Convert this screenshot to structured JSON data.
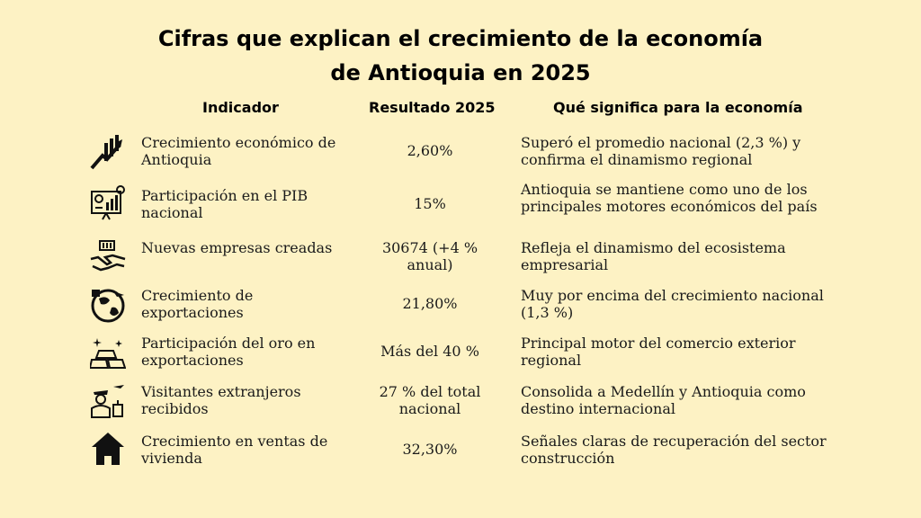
{
  "title_line1": "Cifras que explican el crecimiento de la economía",
  "title_line2": "de Antioquia en 2025",
  "headers": {
    "indicator": "Indicador",
    "result": "Resultado 2025",
    "meaning": "Qué significa para la economía"
  },
  "rows": [
    {
      "icon": "growth-chart-icon",
      "indicator": "Crecimiento económico de Antioquia",
      "result": "2,60%",
      "meaning": "Superó el promedio nacional (2,3 %) y confirma el dinamismo regional"
    },
    {
      "icon": "presentation-chart-icon",
      "indicator": "Participación en el PIB nacional",
      "result": "15%",
      "meaning": "Antioquia se mantiene como uno de los principales motores económicos del país"
    },
    {
      "icon": "handshake-icon",
      "indicator": "Nuevas empresas creadas",
      "result": "30674 (+4 % anual)",
      "meaning": "Refleja el dinamismo del ecosistema empresarial"
    },
    {
      "icon": "global-export-icon",
      "indicator": "Crecimiento de exportaciones",
      "result": "21,80%",
      "meaning": "Muy por encima del crecimiento nacional (1,3 %)"
    },
    {
      "icon": "gold-bars-icon",
      "indicator": "Participación del oro en exportaciones",
      "result": "Más del 40 %",
      "meaning": "Principal motor del comercio exterior regional"
    },
    {
      "icon": "traveler-icon",
      "indicator": "Visitantes extranjeros recibidos",
      "result": "27 % del total nacional",
      "meaning": "Consolida a Medellín y Antioquia como destino internacional"
    },
    {
      "icon": "house-icon",
      "indicator": "Crecimiento en ventas de vivienda",
      "result": "32,30%",
      "meaning": "Señales claras de recuperación del sector construcción"
    }
  ]
}
